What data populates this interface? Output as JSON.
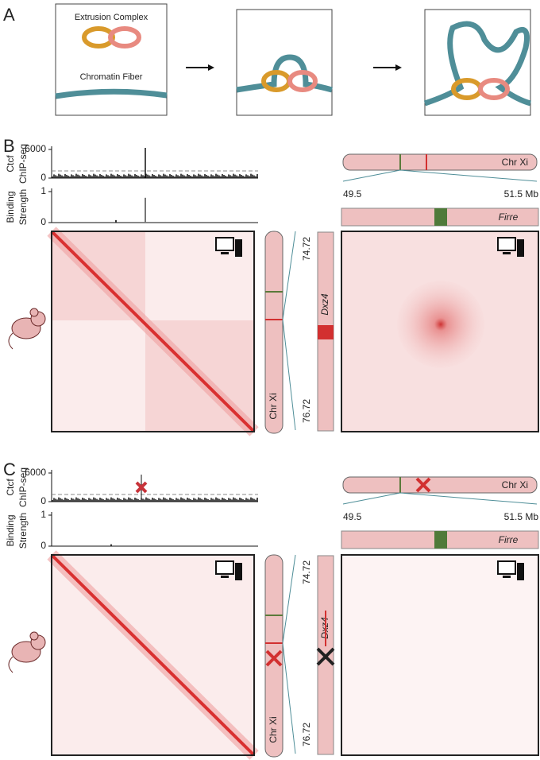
{
  "panels": [
    {
      "label": "A",
      "extrusion_complex": "Extrusion Complex",
      "chromatin_fiber": "Chromatin Fiber"
    },
    {
      "label": "B",
      "chip_label": [
        "Ctcf",
        "ChIP-seq"
      ],
      "chip_ticks": [
        0,
        6000
      ],
      "binding_label": [
        "Binding",
        "Strength"
      ],
      "binding_ticks": [
        0,
        1
      ],
      "chromosome": "Chr Xi",
      "zoom_start": 74.72,
      "zoom_end": 76.72,
      "locus": "Dxz4",
      "range_start": "49.5",
      "range_end": "51.5 Mb",
      "gene": "Firre"
    },
    {
      "label": "C",
      "chip_label": [
        "Ctcf",
        "ChIP-seq"
      ],
      "chip_ticks": [
        0,
        6000
      ],
      "binding_label": [
        "Binding",
        "Strength"
      ],
      "binding_ticks": [
        0,
        1
      ],
      "chromosome": "Chr Xi",
      "zoom_start": 74.72,
      "zoom_end": 76.72,
      "locus": "Dxz4",
      "range_start": "49.5",
      "range_end": "51.5 Mb",
      "gene": "Firre"
    }
  ]
}
